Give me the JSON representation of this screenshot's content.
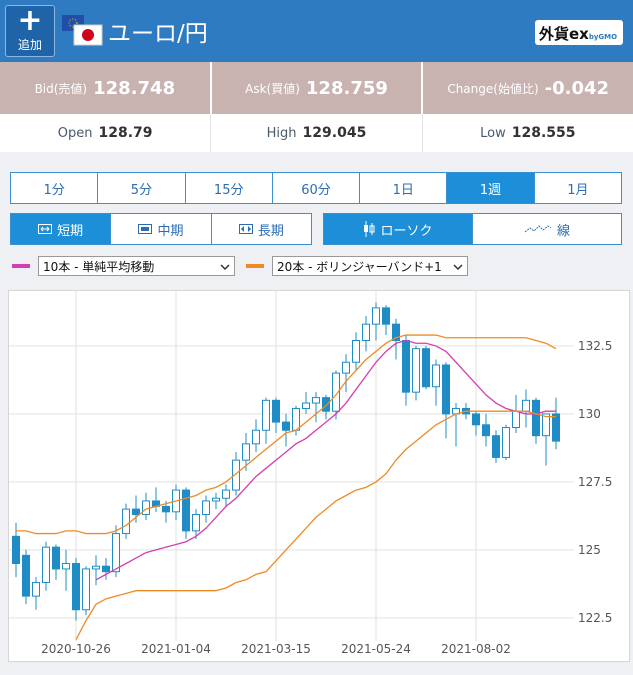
{
  "header": {
    "add_button": "追加",
    "title": "ユーロ/円",
    "logo": "外貨ex",
    "logo_sub": "byGMO"
  },
  "quote": [
    {
      "label": "Bid(売値)",
      "value": "128.748"
    },
    {
      "label": "Ask(買値)",
      "value": "128.759"
    },
    {
      "label": "Change(始値比)",
      "value": "-0.042"
    }
  ],
  "ohlc": [
    {
      "label": "Open",
      "value": "128.79"
    },
    {
      "label": "High",
      "value": "129.045"
    },
    {
      "label": "Low",
      "value": "128.555"
    }
  ],
  "timeframes": {
    "options": [
      "1分",
      "5分",
      "15分",
      "60分",
      "1日",
      "1週",
      "1月"
    ],
    "selected": 5
  },
  "terms": {
    "options": [
      "短期",
      "中期",
      "長期"
    ],
    "selected": 0
  },
  "styles": {
    "options": [
      "ローソク",
      "線"
    ],
    "selected": 0
  },
  "chart_data": {
    "type": "candlestick",
    "categories": [
      null,
      null,
      null,
      null,
      null,
      null,
      "2020-10-26",
      null,
      null,
      null,
      null,
      null,
      null,
      null,
      null,
      null,
      "2021-01-04",
      null,
      null,
      null,
      null,
      null,
      null,
      null,
      null,
      null,
      "2021-03-15",
      null,
      null,
      null,
      null,
      null,
      null,
      null,
      null,
      null,
      "2021-05-24",
      null,
      null,
      null,
      null,
      null,
      null,
      null,
      null,
      null,
      "2021-08-02",
      null,
      null,
      null,
      null,
      null,
      null,
      null,
      null
    ],
    "open": [
      125.5,
      124.8,
      123.3,
      123.8,
      125.1,
      124.3,
      124.5,
      122.8,
      124.3,
      124.4,
      124.2,
      125.6,
      126.5,
      126.3,
      126.8,
      126.6,
      126.4,
      127.2,
      125.7,
      126.3,
      126.8,
      126.9,
      127.2,
      128.3,
      128.9,
      129.4,
      130.5,
      129.7,
      129.4,
      130.2,
      130.4,
      130.6,
      130.1,
      131.5,
      131.9,
      132.7,
      133.3,
      133.9,
      133.3,
      132.7,
      130.8,
      132.4,
      131.0,
      131.8,
      130.0,
      130.2,
      130.0,
      129.6,
      129.2,
      128.4,
      129.5,
      130.1,
      130.5,
      129.2,
      130.0
    ],
    "high": [
      126.0,
      125.0,
      124.0,
      125.3,
      125.2,
      125.0,
      124.7,
      124.4,
      124.8,
      124.7,
      125.9,
      126.7,
      127.0,
      127.1,
      127.3,
      126.8,
      127.4,
      127.3,
      126.5,
      127.0,
      127.1,
      127.4,
      128.6,
      129.3,
      129.8,
      130.6,
      130.6,
      130.0,
      130.3,
      130.8,
      130.8,
      130.7,
      131.6,
      132.2,
      133.0,
      133.6,
      134.1,
      134.0,
      133.5,
      132.9,
      132.5,
      132.5,
      132.0,
      131.9,
      130.4,
      130.4,
      130.1,
      130.0,
      129.4,
      129.6,
      130.7,
      130.9,
      130.6,
      130.0,
      130.6
    ],
    "low": [
      124.0,
      123.0,
      122.8,
      123.5,
      123.9,
      123.5,
      122.4,
      122.6,
      123.7,
      123.9,
      124.0,
      125.4,
      126.0,
      126.1,
      126.4,
      126.0,
      126.1,
      125.4,
      125.4,
      126.0,
      126.5,
      126.6,
      127.0,
      127.9,
      128.6,
      128.9,
      129.3,
      128.8,
      129.2,
      130.0,
      129.7,
      129.8,
      129.8,
      130.8,
      131.6,
      132.3,
      132.7,
      132.9,
      132.0,
      130.3,
      130.5,
      130.9,
      130.3,
      129.1,
      128.8,
      129.8,
      129.2,
      128.8,
      128.2,
      128.3,
      129.3,
      129.5,
      128.9,
      128.1,
      128.7
    ],
    "close": [
      124.5,
      123.3,
      123.8,
      125.1,
      124.3,
      124.5,
      122.8,
      124.3,
      124.4,
      124.2,
      125.6,
      126.5,
      126.3,
      126.8,
      126.6,
      126.4,
      127.2,
      125.7,
      126.3,
      126.8,
      126.9,
      127.2,
      128.3,
      128.9,
      129.4,
      130.5,
      129.7,
      129.4,
      130.2,
      130.4,
      130.6,
      130.1,
      131.5,
      131.9,
      132.7,
      133.3,
      133.9,
      133.3,
      132.7,
      130.8,
      132.4,
      131.0,
      131.8,
      130.0,
      130.2,
      130.0,
      129.6,
      129.2,
      128.4,
      129.5,
      130.1,
      130.5,
      129.2,
      130.0,
      129.0
    ],
    "up_color": "#ffffff",
    "down_color": "#1f8cc6",
    "edge_color": "#1f8cc6",
    "indicators": [
      {
        "name": "10本 - 単純平均移動",
        "color": "#d23fb0",
        "values": [
          null,
          null,
          null,
          null,
          null,
          null,
          null,
          null,
          123.9,
          124.1,
          124.3,
          124.5,
          124.7,
          124.9,
          125.0,
          125.1,
          125.2,
          125.3,
          125.5,
          125.8,
          126.2,
          126.6,
          126.9,
          127.3,
          127.7,
          128.0,
          128.3,
          128.6,
          128.9,
          129.1,
          129.4,
          129.7,
          130.0,
          130.4,
          130.9,
          131.4,
          131.9,
          132.3,
          132.6,
          132.7,
          132.6,
          132.6,
          132.5,
          132.3,
          131.9,
          131.5,
          131.1,
          130.7,
          130.4,
          130.2,
          130.1,
          130.0,
          130.0,
          130.1,
          130.1
        ]
      },
      {
        "name": "20本 - ボリンジャーバンド+1",
        "color": "#f08a24",
        "upper": [
          125.7,
          125.7,
          125.6,
          125.6,
          125.6,
          125.7,
          125.7,
          125.6,
          125.6,
          125.6,
          125.7,
          125.9,
          126.2,
          126.5,
          126.6,
          126.7,
          126.8,
          126.9,
          127.0,
          127.2,
          127.3,
          127.5,
          127.8,
          128.1,
          128.4,
          128.7,
          129.0,
          129.3,
          129.4,
          129.7,
          130.0,
          130.3,
          130.7,
          131.2,
          131.6,
          132.0,
          132.3,
          132.6,
          132.8,
          132.9,
          132.9,
          132.9,
          132.9,
          132.8,
          132.8,
          132.8,
          132.8,
          132.8,
          132.8,
          132.8,
          132.8,
          132.8,
          132.7,
          132.6,
          132.4
        ],
        "lower": [
          null,
          null,
          null,
          null,
          null,
          null,
          121.7,
          122.4,
          123.0,
          123.2,
          123.3,
          123.4,
          123.5,
          123.5,
          123.5,
          123.5,
          123.5,
          123.5,
          123.5,
          123.5,
          123.5,
          123.6,
          123.8,
          123.9,
          124.1,
          124.2,
          124.6,
          125.0,
          125.4,
          125.8,
          126.2,
          126.5,
          126.8,
          127.0,
          127.2,
          127.3,
          127.5,
          127.8,
          128.3,
          128.7,
          129.0,
          129.3,
          129.6,
          129.8,
          130.0,
          130.1,
          130.1,
          130.1,
          130.1,
          130.1,
          130.1,
          130.1,
          130.0,
          129.9,
          129.9
        ]
      }
    ],
    "ylim": [
      121.65,
      134.52
    ],
    "yticks": [
      122.5,
      125,
      127.5,
      130,
      132.5
    ],
    "grid": true
  }
}
